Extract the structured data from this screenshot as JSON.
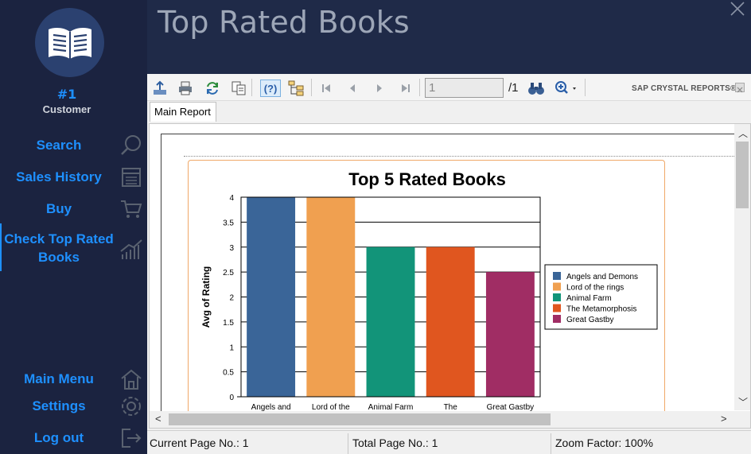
{
  "app": {
    "page_title": "Top Rated Books",
    "user": {
      "rank": "#1",
      "role": "Customer"
    }
  },
  "sidebar": {
    "items": [
      {
        "label": "Search",
        "icon": "search-icon"
      },
      {
        "label": "Sales History",
        "icon": "register-icon"
      },
      {
        "label": "Buy",
        "icon": "cart-icon"
      },
      {
        "label": "Check Top Rated Books",
        "icon": "trend-chart-icon",
        "active": true
      },
      {
        "label": "Main Menu",
        "icon": "home-icon"
      },
      {
        "label": "Settings",
        "icon": "gear-icon"
      },
      {
        "label": "Log out",
        "icon": "logout-icon"
      }
    ]
  },
  "toolbar": {
    "current_page_value": "1",
    "total_pages": "/1",
    "brand": "SAP CRYSTAL REPORTS®"
  },
  "tabs": [
    {
      "label": "Main Report"
    }
  ],
  "status": {
    "current_page": "Current Page No.: 1",
    "total_page": "Total Page No.: 1",
    "zoom": "Zoom Factor: 100%"
  },
  "colors": {
    "sidebar_bg": "#1b2340",
    "header_bg": "#1f2a48",
    "accent": "#1e90ff"
  },
  "chart_data": {
    "type": "bar",
    "title": "Top 5 Rated Books",
    "xlabel": "",
    "ylabel": "Avg of Rating",
    "ylim": [
      0,
      4
    ],
    "yticks": [
      "0",
      "0.5",
      "1",
      "1.5",
      "2",
      "2.5",
      "3",
      "3.5",
      "4"
    ],
    "categories": [
      "Angels and",
      "Lord of the",
      "Animal Farm",
      "The",
      "Great Gastby"
    ],
    "values": [
      4,
      4,
      3,
      3,
      2.5
    ],
    "colors": [
      "#3a6598",
      "#f0a050",
      "#129479",
      "#e0561f",
      "#a02d64"
    ],
    "legend": {
      "placement": "right",
      "entries": [
        "Angels and Demons",
        "Lord of the rings",
        " Animal Farm",
        "The Metamorphosis",
        "Great Gastby"
      ]
    }
  }
}
